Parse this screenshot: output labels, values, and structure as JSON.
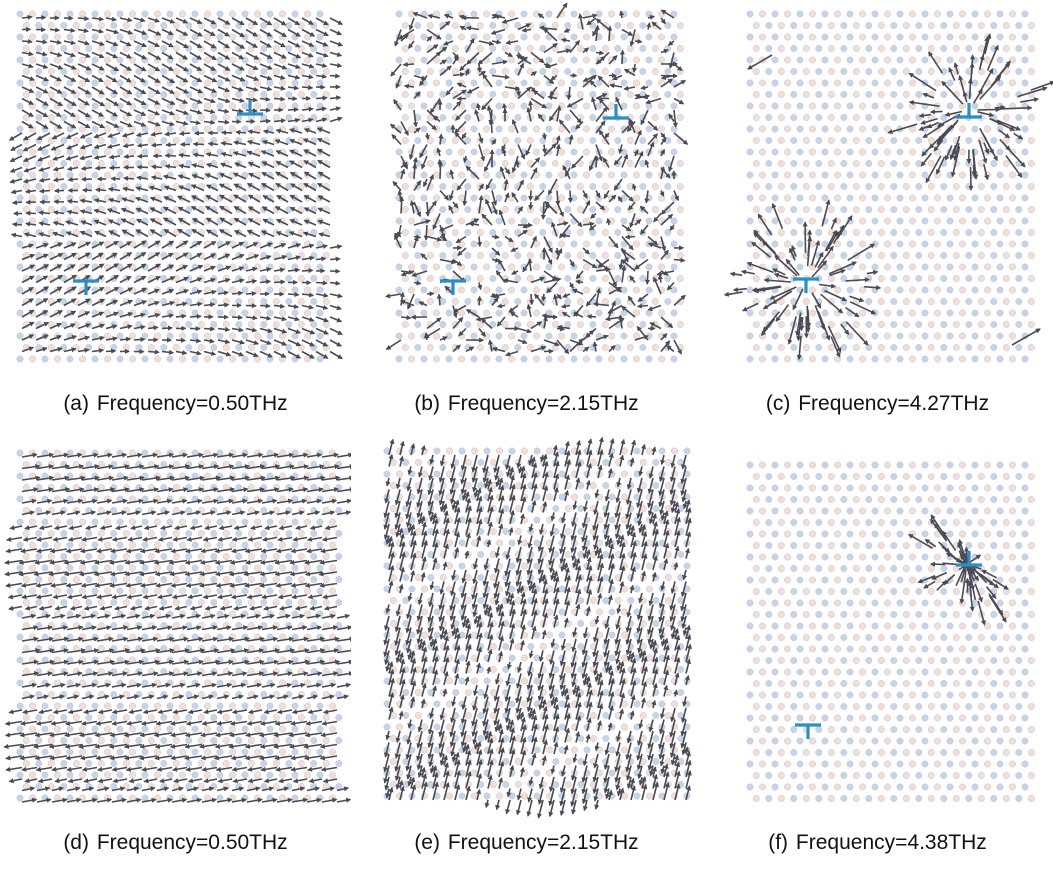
{
  "panels": [
    {
      "id": "a",
      "tag": "(a)",
      "label": "Frequency=0.50THz",
      "pattern": "shear-waves",
      "dislocations": [
        {
          "type": "up"
        },
        {
          "type": "down"
        }
      ]
    },
    {
      "id": "b",
      "tag": "(b)",
      "label": "Frequency=2.15THz",
      "pattern": "random-vertical",
      "dislocations": [
        {
          "type": "up"
        },
        {
          "type": "down"
        }
      ]
    },
    {
      "id": "c",
      "tag": "(c)",
      "label": "Frequency=4.27THz",
      "pattern": "localized-cores",
      "dislocations": [
        {
          "type": "up"
        },
        {
          "type": "down"
        }
      ]
    },
    {
      "id": "d",
      "tag": "(d)",
      "label": "Frequency=0.50THz",
      "pattern": "horizontal-bands",
      "dislocations": []
    },
    {
      "id": "e",
      "tag": "(e)",
      "label": "Frequency=2.15THz",
      "pattern": "diagonal-bands",
      "dislocations": []
    },
    {
      "id": "f",
      "tag": "(f)",
      "label": "Frequency=4.38THz",
      "pattern": "single-core",
      "dislocations": [
        {
          "type": "up"
        },
        {
          "type": "down"
        }
      ]
    }
  ],
  "colors": {
    "atom_a": "#c7d3e8",
    "atom_b": "#f1ddd9",
    "arrow": "#4a4a52",
    "dislocation": "#2a8fc4"
  }
}
